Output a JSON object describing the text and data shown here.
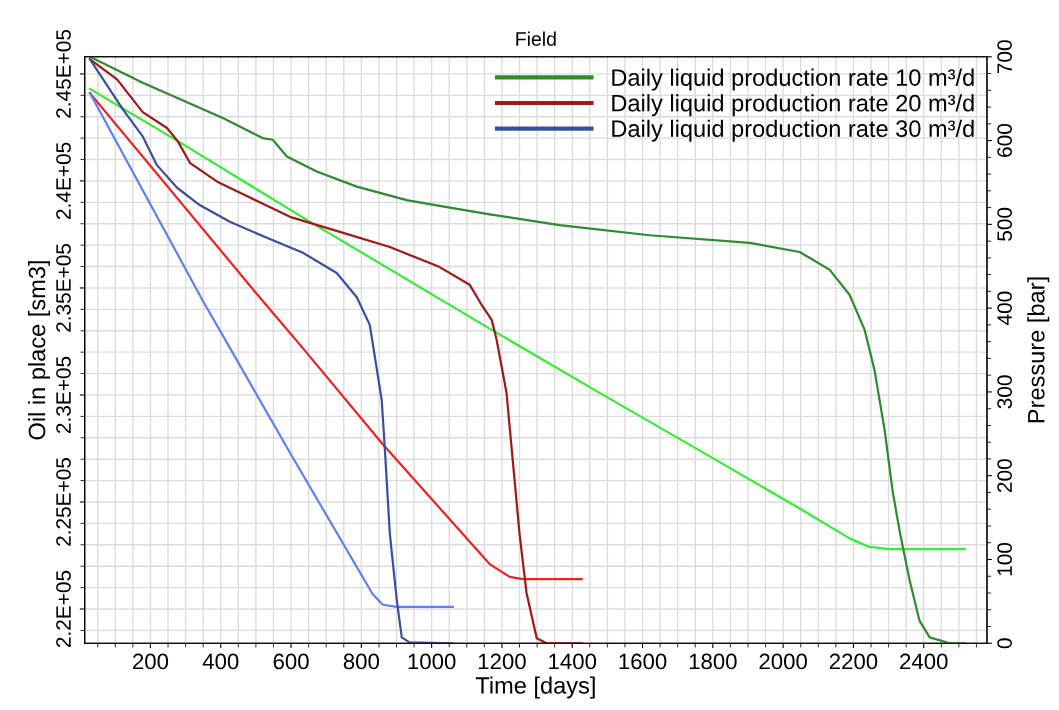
{
  "chart_data": {
    "type": "line",
    "title": "Field",
    "xlabel": "Time [days]",
    "ylabel": "Oil in place [sm3]",
    "y2label": "Pressure [bar]",
    "xlim": [
      13,
      2580
    ],
    "xticks": [
      200,
      400,
      600,
      800,
      1000,
      1200,
      1400,
      1600,
      1800,
      2000,
      2200,
      2400
    ],
    "ylim": [
      218400,
      245800
    ],
    "yticks": [
      {
        "value": 220000,
        "label": "2.2E+05"
      },
      {
        "value": 225000,
        "label": "2.25E+05"
      },
      {
        "value": 230000,
        "label": "2.3E+05"
      },
      {
        "value": 235000,
        "label": "2.35E+05"
      },
      {
        "value": 240000,
        "label": "2.4E+05"
      },
      {
        "value": 245000,
        "label": "2.45E+05"
      }
    ],
    "y2lim": [
      0,
      700
    ],
    "y2ticks": [
      0,
      100,
      200,
      300,
      400,
      500,
      600,
      700
    ],
    "grid": true,
    "legend": "top right",
    "marker": "none",
    "line_style": "solid",
    "series": [
      {
        "name": "Daily liquid production rate 10 m³/d",
        "color": "#2e8b2e",
        "axis": "y2",
        "x": [
          28,
          178,
          406,
          519,
          548,
          588,
          673,
          787,
          929,
          1052,
          1165,
          1364,
          1620,
          1905,
          2047,
          2132,
          2189,
          2232,
          2260,
          2289,
          2311,
          2331,
          2360,
          2388,
          2417,
          2474,
          2517
        ],
        "values": [
          700,
          669,
          627,
          603,
          601,
          581,
          563,
          545,
          529,
          520,
          512,
          499,
          487,
          478,
          467,
          446,
          416,
          374,
          326,
          254,
          183,
          135,
          75,
          27,
          7,
          0,
          0
        ]
      },
      {
        "name": "Daily liquid production rate 20 m³/d",
        "color": "#a01818",
        "axis": "y2",
        "x": [
          28,
          105,
          178,
          247,
          278,
          313,
          390,
          483,
          597,
          739,
          881,
          1023,
          1108,
          1142,
          1171,
          1185,
          1213,
          1250,
          1270,
          1299,
          1327,
          1427
        ],
        "values": [
          697,
          673,
          634,
          615,
          599,
          573,
          551,
          532,
          509,
          491,
          473,
          449,
          428,
          404,
          386,
          362,
          299,
          131,
          60,
          6,
          0,
          0
        ]
      },
      {
        "name": "Daily liquid production rate 30 m³/d",
        "color": "#3a4fa0",
        "axis": "y2",
        "x": [
          28,
          122,
          178,
          218,
          275,
          340,
          426,
          531,
          634,
          730,
          787,
          824,
          858,
          867,
          881,
          901,
          915,
          937,
          1060
        ],
        "values": [
          697,
          637,
          605,
          571,
          544,
          523,
          503,
          484,
          466,
          442,
          413,
          380,
          290,
          231,
          131,
          51,
          7,
          1,
          0
        ]
      },
      {
        "color": "#33ee33",
        "x": [
          28,
          284,
          653,
          1165,
          1478,
          1763,
          2047,
          2189,
          2246,
          2303,
          2517
        ],
        "values": [
          244300,
          241800,
          238100,
          233100,
          230100,
          227400,
          224700,
          223300,
          222900,
          222800,
          222800
        ]
      },
      {
        "color": "#ee2222",
        "x": [
          28,
          519,
          633,
          861,
          1165,
          1222,
          1259,
          1427
        ],
        "values": [
          244100,
          234400,
          232200,
          227700,
          222100,
          221500,
          221400,
          221400
        ]
      },
      {
        "color": "#5f82f0",
        "x": [
          28,
          349,
          426,
          597,
          832,
          861,
          901,
          1060
        ],
        "values": [
          244100,
          234400,
          232200,
          227300,
          220700,
          220200,
          220100,
          220100
        ]
      }
    ]
  }
}
